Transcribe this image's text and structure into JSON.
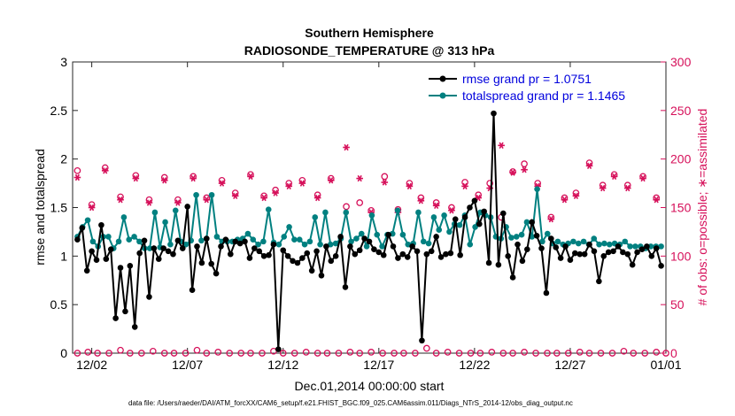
{
  "chart_data": {
    "type": "line",
    "title": "Southern Hemisphere",
    "subtitle": "RADIOSONDE_TEMPERATURE @ 313 hPa",
    "xlabel": "Dec.01,2014 00:00:00 start",
    "ylabel": "rmse and totalspread",
    "ylabel_right": "# of obs: o=possible; ∗=assimilated",
    "xlim": [
      0,
      31
    ],
    "ylim": [
      0,
      3
    ],
    "ylim_right": [
      0,
      300
    ],
    "yticks": [
      "0",
      "0.5",
      "1",
      "1.5",
      "2",
      "2.5",
      "3"
    ],
    "yticks_right": [
      "0",
      "50",
      "100",
      "150",
      "200",
      "250",
      "300"
    ],
    "xticks": [
      {
        "x": 1,
        "label": "12/02"
      },
      {
        "x": 6,
        "label": "12/07"
      },
      {
        "x": 11,
        "label": "12/12"
      },
      {
        "x": 16,
        "label": "12/17"
      },
      {
        "x": 21,
        "label": "12/22"
      },
      {
        "x": 26,
        "label": "12/27"
      },
      {
        "x": 31,
        "label": "01/01"
      }
    ],
    "legend_position": "top-right",
    "colors": {
      "rmse": "#000000",
      "spread": "#008080",
      "obs": "#d6105a",
      "legend_text": "#0000dd"
    },
    "series": [
      {
        "name": "rmse grand pr = 1.0751",
        "color": "#000000",
        "values": [
          1.17,
          1.29,
          0.85,
          1.05,
          0.96,
          1.32,
          0.97,
          1.07,
          0.36,
          0.88,
          0.43,
          0.9,
          0.27,
          1.03,
          1.16,
          0.58,
          1.08,
          0.97,
          1.08,
          1.05,
          1.02,
          1.16,
          1.08,
          1.51,
          0.65,
          1.1,
          0.93,
          1.18,
          0.92,
          0.82,
          1.1,
          1.17,
          1.02,
          1.15,
          1.13,
          1.15,
          0.98,
          1.08,
          1.05,
          1.0,
          1.01,
          1.12,
          0.04,
          1.06,
          1.0,
          0.95,
          0.93,
          0.98,
          1.03,
          0.85,
          1.05,
          0.8,
          1.1,
          0.95,
          1.0,
          1.2,
          0.68,
          1.1,
          1.02,
          1.06,
          1.18,
          1.15,
          1.07,
          1.04,
          1.01,
          1.22,
          1.1,
          0.98,
          1.02,
          0.99,
          1.1,
          1.05,
          0.13,
          1.02,
          1.05,
          1.2,
          0.99,
          1.02,
          1.03,
          1.38,
          1.01,
          1.4,
          1.5,
          1.57,
          1.33,
          1.46,
          0.93,
          2.47,
          0.91,
          1.44,
          1.0,
          0.78,
          1.12,
          0.95,
          1.07,
          1.35,
          1.21,
          1.08,
          0.62,
          1.18,
          1.09,
          0.98,
          1.1,
          0.96,
          1.03,
          1.02,
          1.02,
          1.12,
          1.05,
          0.74,
          1.0,
          1.04,
          1.05,
          1.1,
          1.04,
          1.02,
          0.91,
          1.04,
          1.07,
          1.1,
          1.0,
          1.08,
          0.9
        ]
      },
      {
        "name": "totalspread grand pr = 1.1465",
        "color": "#008080",
        "values": [
          1.2,
          1.3,
          1.37,
          1.15,
          1.1,
          1.2,
          1.2,
          1.08,
          1.15,
          1.4,
          1.17,
          1.2,
          1.15,
          1.08,
          1.08,
          1.45,
          1.09,
          1.35,
          1.12,
          1.47,
          1.15,
          1.12,
          1.16,
          1.63,
          1.16,
          1.18,
          1.63,
          1.2,
          1.15,
          1.15,
          1.15,
          1.17,
          1.18,
          1.23,
          1.17,
          1.12,
          1.15,
          1.48,
          1.14,
          1.12,
          1.2,
          1.3,
          1.17,
          1.17,
          1.12,
          1.15,
          1.4,
          1.12,
          1.45,
          1.12,
          1.13,
          1.18,
          1.45,
          1.15,
          1.18,
          1.23,
          1.1,
          1.42,
          1.22,
          1.1,
          1.22,
          1.23,
          1.47,
          1.22,
          1.12,
          1.13,
          1.45,
          1.15,
          1.13,
          1.4,
          1.27,
          1.42,
          1.25,
          1.33,
          1.32,
          1.42,
          1.12,
          1.3,
          1.45,
          1.42,
          1.4,
          1.2,
          1.18,
          1.3,
          1.19,
          1.2,
          1.22,
          1.35,
          1.2,
          1.69,
          1.15,
          1.23,
          1.13,
          1.15,
          1.12,
          1.13,
          1.15,
          1.13,
          1.15,
          1.12,
          1.18,
          1.12,
          1.13,
          1.12,
          1.13,
          1.12,
          1.15,
          1.1,
          1.1,
          1.1,
          1.08,
          1.1,
          1.1,
          1.1
        ]
      },
      {
        "name": "possible",
        "axis": "right",
        "marker": "o",
        "color": "#d6105a",
        "x": [
          0.25,
          1.0,
          1.7,
          2.5,
          3.3,
          4.0,
          4.8,
          5.5,
          6.3,
          7.0,
          7.8,
          8.5,
          9.3,
          10.0,
          10.6,
          11.3,
          12.0,
          12.8,
          13.5,
          14.3,
          15.0,
          15.6,
          16.3,
          17.0,
          17.6,
          18.2,
          19.0,
          19.8,
          20.5,
          21.2,
          21.8,
          22.4,
          23.0,
          23.6,
          24.3,
          25.0,
          25.7,
          26.3,
          27.0,
          27.7,
          28.3,
          29.0,
          29.8,
          30.5
        ],
        "values": [
          188,
          153,
          191,
          161,
          183,
          158,
          181,
          158,
          182,
          160,
          178,
          165,
          184,
          162,
          168,
          175,
          178,
          163,
          180,
          151,
          155,
          147,
          182,
          148,
          175,
          160,
          155,
          150,
          176,
          163,
          175,
          140,
          187,
          195,
          175,
          140,
          160,
          165,
          196,
          173,
          184,
          173,
          182,
          160
        ]
      },
      {
        "name": "assimilated",
        "axis": "right",
        "marker": "*",
        "color": "#d6105a",
        "x": [
          0.25,
          1.0,
          1.7,
          2.5,
          3.3,
          4.0,
          4.8,
          5.5,
          6.3,
          7.0,
          7.8,
          8.5,
          9.3,
          10.0,
          10.6,
          11.3,
          12.0,
          12.8,
          13.5,
          14.3,
          15.0,
          15.6,
          16.3,
          17.0,
          17.6,
          18.2,
          19.0,
          19.8,
          20.5,
          21.2,
          21.8,
          22.4,
          23.0,
          23.6,
          24.3,
          25.0,
          25.7,
          26.3,
          27.0,
          27.7,
          28.3,
          29.0,
          29.8,
          30.5
        ],
        "values": [
          181,
          150,
          188,
          158,
          180,
          155,
          178,
          155,
          180,
          158,
          175,
          162,
          182,
          160,
          165,
          172,
          175,
          160,
          178,
          212,
          180,
          145,
          176,
          145,
          172,
          157,
          152,
          147,
          172,
          160,
          170,
          214,
          186,
          189,
          172,
          138,
          158,
          162,
          193,
          170,
          182,
          170,
          180,
          158
        ]
      },
      {
        "name": "possible_zero",
        "axis": "right",
        "marker": "o",
        "color": "#d6105a",
        "x": [
          0.25,
          0.8,
          1.3,
          1.9,
          2.5,
          3.0,
          3.6,
          4.2,
          4.8,
          5.3,
          5.9,
          6.5,
          7.0,
          7.6,
          8.2,
          8.8,
          9.3,
          9.9,
          10.5,
          11.0,
          11.6,
          12.2,
          12.8,
          13.3,
          13.9,
          14.5,
          15.0,
          15.6,
          16.2,
          16.8,
          17.3,
          17.9,
          18.5,
          19.0,
          19.6,
          20.2,
          20.8,
          21.3,
          21.9,
          22.5,
          23.0,
          23.6,
          24.2,
          24.8,
          25.3,
          25.9,
          26.5,
          27.0,
          27.6,
          28.2,
          28.8,
          29.3,
          29.9,
          30.5,
          31.0
        ],
        "values": [
          0,
          1,
          0,
          0,
          3,
          0,
          0,
          2,
          0,
          0,
          0,
          3,
          0,
          1,
          0,
          0,
          0,
          0,
          2,
          0,
          0,
          1,
          0,
          0,
          0,
          1,
          0,
          1,
          0,
          0,
          0,
          0,
          5,
          0,
          1,
          0,
          0,
          0,
          1,
          0,
          0,
          1,
          0,
          0,
          0,
          0,
          1,
          0,
          0,
          0,
          2,
          0,
          0,
          1,
          0
        ]
      }
    ],
    "footnote": "data file: /Users/raeder/DAI/ATM_forcXX/CAM6_setup/f.e21.FHIST_BGC.f09_025.CAM6assim.011/Diags_NTrS_2014-12/obs_diag_output.nc"
  }
}
